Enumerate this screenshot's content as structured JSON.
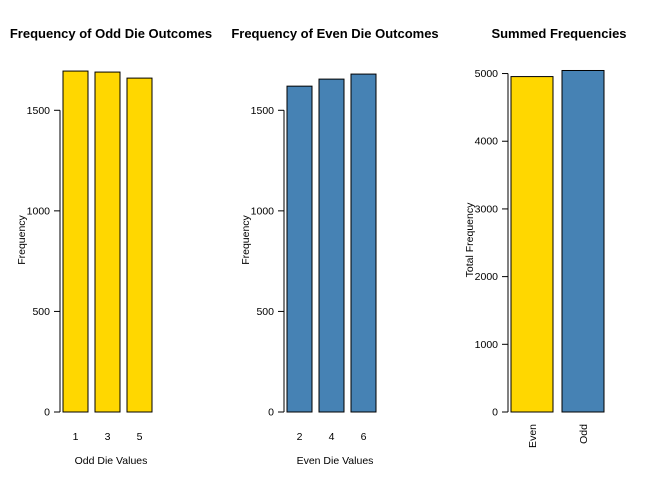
{
  "colors": {
    "odd": "#FFD700",
    "even": "#4682B4",
    "bar_stroke": "#000000",
    "axis": "#000000",
    "background": "#FFFFFF"
  },
  "chart_data": [
    {
      "type": "bar",
      "title": "Frequency of Odd Die Outcomes",
      "xlabel": "Odd Die Values",
      "ylabel": "Frequency",
      "categories": [
        "1",
        "3",
        "5"
      ],
      "values": [
        1695,
        1690,
        1660
      ],
      "yticks": [
        0,
        500,
        1000,
        1500
      ],
      "ylim": [
        0,
        1750
      ],
      "color": "#FFD700",
      "grid": false,
      "category_label_rotation": "horizontal"
    },
    {
      "type": "bar",
      "title": "Frequency of Even Die Outcomes",
      "xlabel": "Even Die Values",
      "ylabel": "Frequency",
      "categories": [
        "2",
        "4",
        "6"
      ],
      "values": [
        1620,
        1655,
        1680
      ],
      "yticks": [
        0,
        500,
        1000,
        1500
      ],
      "ylim": [
        0,
        1750
      ],
      "color": "#4682B4",
      "grid": false,
      "category_label_rotation": "horizontal"
    },
    {
      "type": "bar",
      "title": "Summed Frequencies",
      "xlabel": "",
      "ylabel": "Total Frequency",
      "categories": [
        "Even",
        "Odd"
      ],
      "values": [
        4955,
        5045
      ],
      "yticks": [
        0,
        1000,
        2000,
        3000,
        4000,
        5000
      ],
      "ylim": [
        0,
        5200
      ],
      "colors": [
        "#FFD700",
        "#4682B4"
      ],
      "grid": false,
      "category_label_rotation": "vertical"
    }
  ]
}
